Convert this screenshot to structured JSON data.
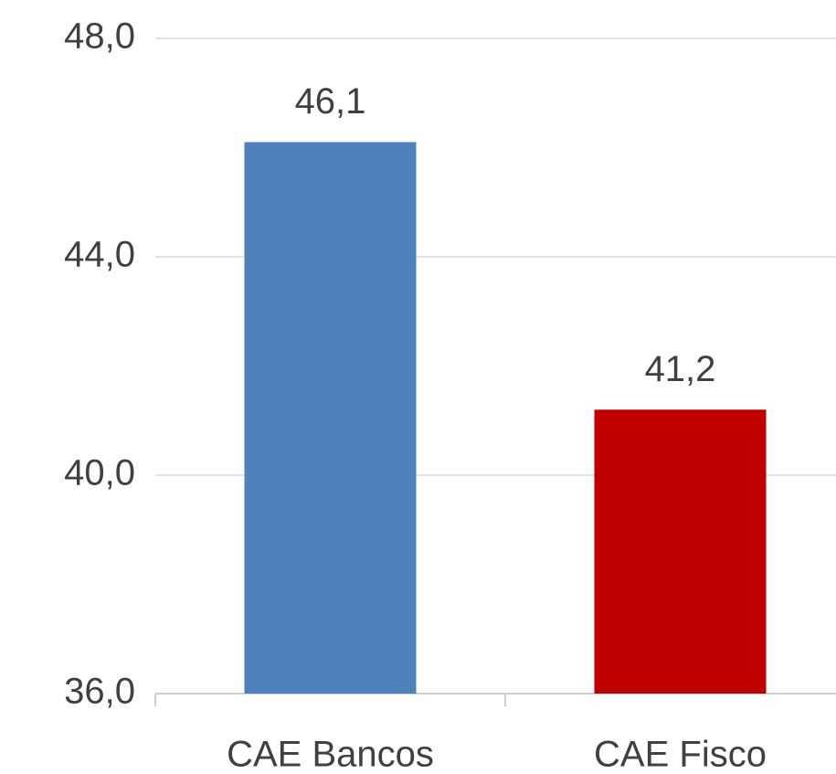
{
  "chart_data": {
    "type": "bar",
    "categories": [
      "CAE Bancos",
      "CAE Fisco"
    ],
    "values": [
      46.1,
      41.2
    ],
    "value_labels": [
      "46,1",
      "41,2"
    ],
    "colors": [
      "#4f81bd",
      "#c00000"
    ],
    "ylim": [
      36,
      48
    ],
    "yticks": [
      {
        "value": 36,
        "label": "36,0"
      },
      {
        "value": 40,
        "label": "40,0"
      },
      {
        "value": 44,
        "label": "44,0"
      },
      {
        "value": 48,
        "label": "48,0"
      }
    ],
    "grid": true
  }
}
